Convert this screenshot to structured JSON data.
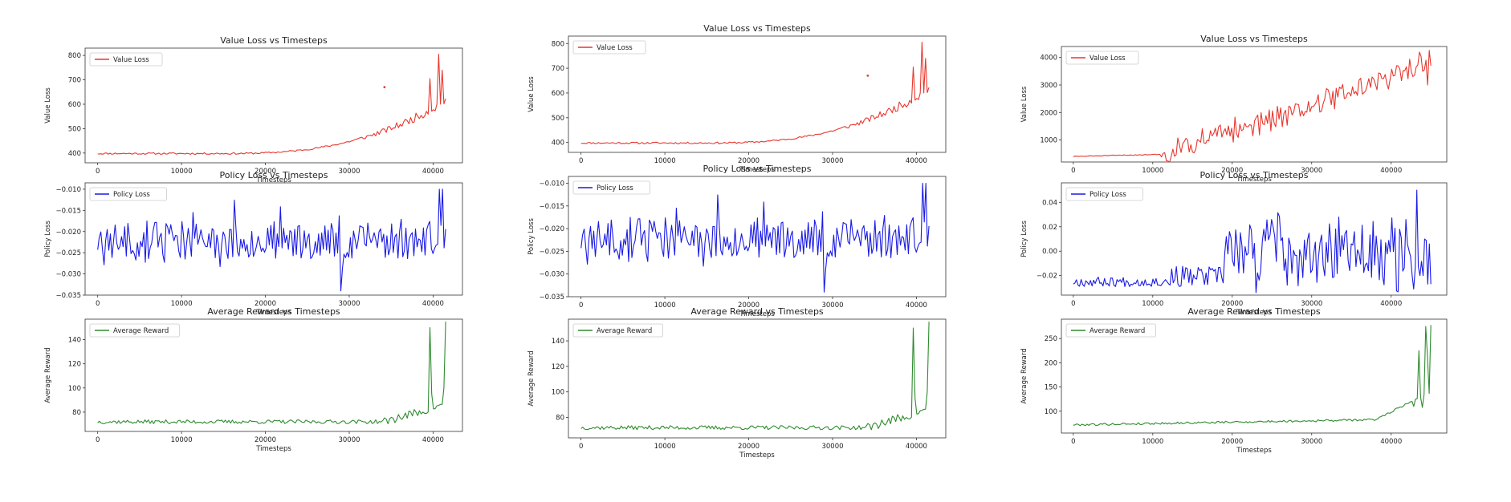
{
  "figure": {
    "layout": "3 columns x 3 rows of line plots"
  },
  "chart_data": [
    {
      "type": "line",
      "column": 1,
      "row": 1,
      "title": "Value Loss vs Timesteps",
      "xlabel": "Timesteps",
      "ylabel": "Value Loss",
      "legend": "Value Loss",
      "legend_position": "top-left",
      "color": "#e8372e",
      "xlim": [
        -1500,
        43500
      ],
      "ylim": [
        360,
        830
      ],
      "xticks": [
        0,
        10000,
        20000,
        30000,
        40000
      ],
      "yticks": [
        400,
        500,
        600,
        700,
        800
      ],
      "ytick_labels": [
        "400",
        "500",
        "600",
        "700",
        "800"
      ],
      "x_start": 0,
      "x_end": 41500,
      "points": 200,
      "gen": "value",
      "base": 398,
      "noise": 7,
      "seed": 11,
      "outlier": [
        34200,
        670
      ],
      "spike": [
        [
          39600,
          705
        ],
        [
          40700,
          805
        ],
        [
          41000,
          740
        ]
      ]
    },
    {
      "type": "line",
      "column": 1,
      "row": 2,
      "title": "Policy Loss vs Timesteps",
      "xlabel": "Timesteps",
      "ylabel": "Policy Loss",
      "legend": "Policy Loss",
      "legend_position": "top-left",
      "color": "#1a1ae6",
      "xlim": [
        -1500,
        43500
      ],
      "ylim": [
        -0.035,
        -0.0085
      ],
      "xticks": [
        0,
        10000,
        20000,
        30000,
        40000
      ],
      "yticks": [
        -0.035,
        -0.03,
        -0.025,
        -0.02,
        -0.015,
        -0.01
      ],
      "ytick_labels": [
        "−0.035",
        "−0.030",
        "−0.025",
        "−0.020",
        "−0.015",
        "−0.010"
      ],
      "x_start": 0,
      "x_end": 41500,
      "points": 220,
      "gen": "policy",
      "base": -0.022,
      "noise": 0.0045,
      "seed": 23,
      "extremes": [
        [
          29000,
          -0.034
        ],
        [
          40700,
          -0.01
        ],
        [
          41200,
          -0.01
        ]
      ]
    },
    {
      "type": "line",
      "column": 1,
      "row": 3,
      "title": "Average Reward vs Timesteps",
      "xlabel": "Timesteps",
      "ylabel": "Average Reward",
      "legend": "Average Reward",
      "legend_position": "top-left",
      "color": "#2e8b2e",
      "xlim": [
        -1500,
        43500
      ],
      "ylim": [
        64,
        157
      ],
      "xticks": [
        0,
        10000,
        20000,
        30000,
        40000
      ],
      "yticks": [
        80,
        100,
        120,
        140
      ],
      "ytick_labels": [
        "80",
        "100",
        "120",
        "140"
      ],
      "x_start": 0,
      "x_end": 41500,
      "points": 200,
      "gen": "reward",
      "base": 72,
      "noise": 1.6,
      "seed": 37,
      "spike": [
        [
          39600,
          150
        ],
        [
          39900,
          95
        ],
        [
          41300,
          100
        ],
        [
          41500,
          155
        ]
      ]
    },
    {
      "type": "line",
      "column": 2,
      "row": 1,
      "title": "Value Loss vs Timesteps",
      "xlabel": "Timesteps",
      "ylabel": "Value Loss",
      "legend": "Value Loss",
      "legend_position": "top-left",
      "color": "#e8372e",
      "xlim": [
        -1500,
        43500
      ],
      "ylim": [
        360,
        830
      ],
      "xticks": [
        0,
        10000,
        20000,
        30000,
        40000
      ],
      "yticks": [
        400,
        500,
        600,
        700,
        800
      ],
      "ytick_labels": [
        "400",
        "500",
        "600",
        "700",
        "800"
      ],
      "x_start": 0,
      "x_end": 41500,
      "points": 200,
      "gen": "value",
      "base": 398,
      "noise": 7,
      "seed": 11,
      "outlier": [
        34200,
        670
      ],
      "spike": [
        [
          39600,
          705
        ],
        [
          40700,
          805
        ],
        [
          41000,
          740
        ]
      ]
    },
    {
      "type": "line",
      "column": 2,
      "row": 2,
      "title": "Policy Loss vs Timesteps",
      "xlabel": "Timesteps",
      "ylabel": "Policy Loss",
      "legend": "Policy Loss",
      "legend_position": "top-left",
      "color": "#1a1ae6",
      "xlim": [
        -1500,
        43500
      ],
      "ylim": [
        -0.035,
        -0.0085
      ],
      "xticks": [
        0,
        10000,
        20000,
        30000,
        40000
      ],
      "yticks": [
        -0.035,
        -0.03,
        -0.025,
        -0.02,
        -0.015,
        -0.01
      ],
      "ytick_labels": [
        "−0.035",
        "−0.030",
        "−0.025",
        "−0.020",
        "−0.015",
        "−0.010"
      ],
      "x_start": 0,
      "x_end": 41500,
      "points": 220,
      "gen": "policy",
      "base": -0.022,
      "noise": 0.0045,
      "seed": 23,
      "extremes": [
        [
          29000,
          -0.034
        ],
        [
          40700,
          -0.01
        ],
        [
          41200,
          -0.01
        ]
      ]
    },
    {
      "type": "line",
      "column": 2,
      "row": 3,
      "title": "Average Reward vs Timesteps",
      "xlabel": "Timesteps",
      "ylabel": "Average Reward",
      "legend": "Average Reward",
      "legend_position": "top-left",
      "color": "#2e8b2e",
      "xlim": [
        -1500,
        43500
      ],
      "ylim": [
        64,
        157
      ],
      "xticks": [
        0,
        10000,
        20000,
        30000,
        40000
      ],
      "yticks": [
        80,
        100,
        120,
        140
      ],
      "ytick_labels": [
        "80",
        "100",
        "120",
        "140"
      ],
      "x_start": 0,
      "x_end": 41500,
      "points": 200,
      "gen": "reward",
      "base": 72,
      "noise": 1.6,
      "seed": 37,
      "spike": [
        [
          39600,
          150
        ],
        [
          39900,
          95
        ],
        [
          41300,
          100
        ],
        [
          41500,
          155
        ]
      ]
    },
    {
      "type": "line",
      "column": 3,
      "row": 1,
      "title": "Value Loss vs Timesteps",
      "xlabel": "Timesteps",
      "ylabel": "Value Loss",
      "legend": "Value Loss",
      "legend_position": "top-left",
      "color": "#e8372e",
      "xlim": [
        -1500,
        47000
      ],
      "ylim": [
        200,
        4400
      ],
      "xticks": [
        0,
        10000,
        20000,
        30000,
        40000
      ],
      "yticks": [
        1000,
        2000,
        3000,
        4000
      ],
      "ytick_labels": [
        "1000",
        "2000",
        "3000",
        "4000"
      ],
      "x_start": 0,
      "x_end": 45000,
      "points": 220,
      "gen": "value3",
      "base": 400,
      "noise": 380,
      "seed": 51
    },
    {
      "type": "line",
      "column": 3,
      "row": 2,
      "title": "Policy Loss vs Timesteps",
      "xlabel": "Timesteps",
      "ylabel": "Policy Loss",
      "legend": "Policy Loss",
      "legend_position": "top-left",
      "color": "#1a1ae6",
      "xlim": [
        -1500,
        47000
      ],
      "ylim": [
        -0.036,
        0.056
      ],
      "xticks": [
        0,
        10000,
        20000,
        30000,
        40000
      ],
      "yticks": [
        -0.02,
        0.0,
        0.02,
        0.04
      ],
      "ytick_labels": [
        "−0.02",
        "0.00",
        "0.02",
        "0.04"
      ],
      "x_start": 0,
      "x_end": 45000,
      "points": 230,
      "gen": "policy3",
      "base": -0.025,
      "noise": 0.004,
      "seed": 67
    },
    {
      "type": "line",
      "column": 3,
      "row": 3,
      "title": "Average Reward vs Timesteps",
      "xlabel": "Timesteps",
      "ylabel": "Average Reward",
      "legend": "Average Reward",
      "legend_position": "top-left",
      "color": "#2e8b2e",
      "xlim": [
        -1500,
        47000
      ],
      "ylim": [
        55,
        290
      ],
      "xticks": [
        0,
        10000,
        20000,
        30000,
        40000
      ],
      "yticks": [
        100,
        150,
        200,
        250
      ],
      "ytick_labels": [
        "100",
        "150",
        "200",
        "250"
      ],
      "x_start": 0,
      "x_end": 45000,
      "points": 210,
      "gen": "reward3",
      "base": 72,
      "noise": 2.2,
      "seed": 79
    }
  ]
}
